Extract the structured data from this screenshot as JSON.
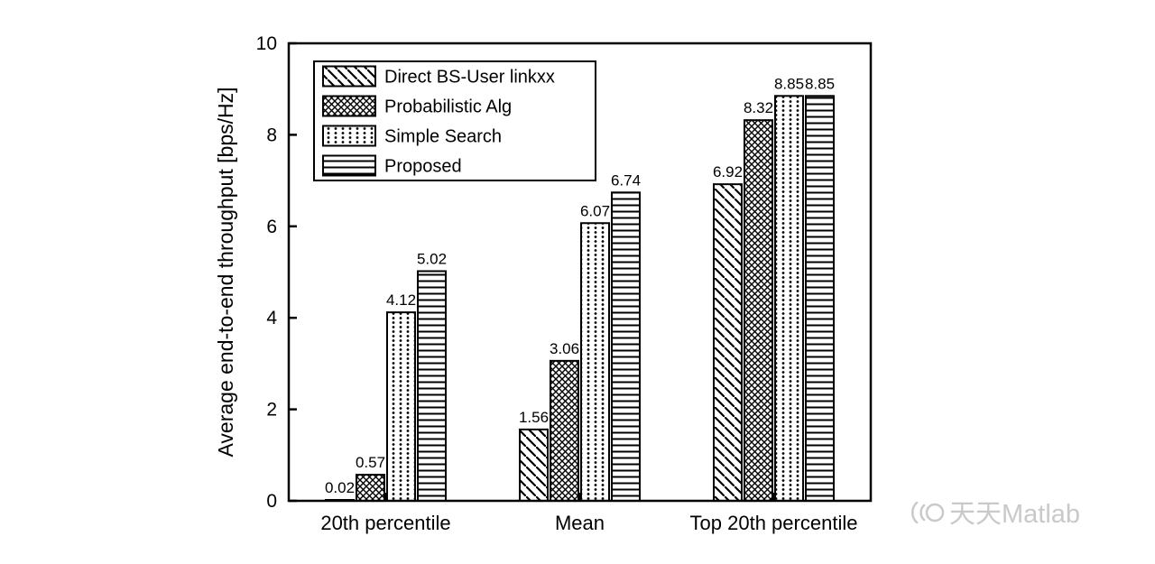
{
  "chart_data": {
    "type": "bar",
    "title": "",
    "categories": [
      "20th percentile",
      "Mean",
      "Top 20th percentile"
    ],
    "series": [
      {
        "name": "Direct BS-User linkxx",
        "hatch": "diagonal",
        "values": [
          0.02,
          1.56,
          6.92
        ]
      },
      {
        "name": "Probabilistic Alg",
        "hatch": "crosshatch",
        "values": [
          0.57,
          3.06,
          8.32
        ]
      },
      {
        "name": "Simple Search",
        "hatch": "dotted",
        "values": [
          4.12,
          6.07,
          8.85
        ]
      },
      {
        "name": "Proposed",
        "hatch": "horizontal",
        "values": [
          5.02,
          6.74,
          8.85
        ]
      }
    ],
    "value_labels": [
      "0.02",
      "0.57",
      "4.12",
      "5.02",
      "1.56",
      "3.06",
      "6.07",
      "6.74",
      "6.92",
      "8.32",
      "8.85",
      "8.85"
    ],
    "xlabel": "",
    "ylabel": "Average end-to-end throughput [bps/Hz]",
    "ylim": [
      0,
      10
    ],
    "y_ticks": [
      0,
      2,
      4,
      6,
      8,
      10
    ],
    "grid": false,
    "legend_position": "top-left-inside",
    "bar_fill_style": "black hatch patterns on white",
    "axis_color": "#000000",
    "background": "#ffffff"
  },
  "watermark": {
    "text": "天天Matlab",
    "color": "#c9c9c9"
  }
}
